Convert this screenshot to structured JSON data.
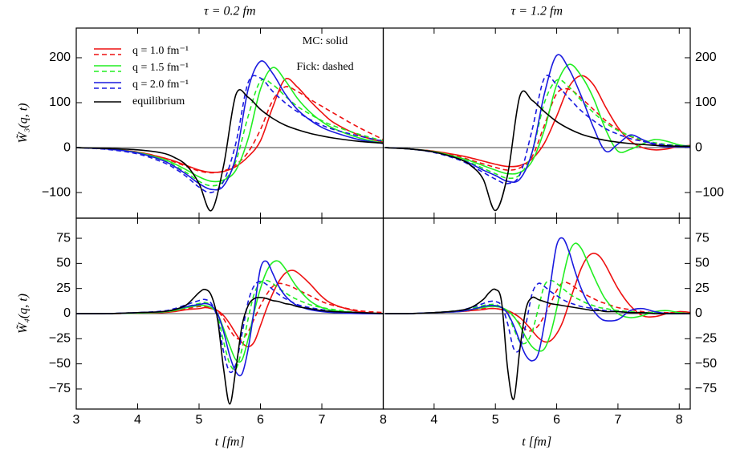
{
  "chart_data": [
    {
      "type": "line",
      "title": "τ = 0.2 fm",
      "ylabel": "W̃₃(q, t)",
      "legend": "upper left",
      "annotations": [
        "MC: solid",
        "Fick: dashed"
      ],
      "x": [
        3,
        3.5,
        4,
        4.4,
        4.6,
        4.8,
        5,
        5.2,
        5.4,
        5.6,
        5.8,
        6,
        6.2,
        6.4,
        6.6,
        6.8,
        7,
        7.2,
        7.6,
        8
      ],
      "xlim": [
        3,
        8
      ],
      "ylim": [
        -157,
        266
      ],
      "yticks": [
        {
          "value": -100,
          "label": "−100"
        },
        0,
        100,
        200
      ],
      "series": [
        {
          "name": "q = 1.0 fm⁻¹",
          "color": "#ee1111",
          "values": [
            0,
            -3,
            -10,
            -22,
            -30,
            -40,
            -50,
            -55,
            -53,
            -42,
            -20,
            15,
            90,
            152,
            135,
            105,
            78,
            55,
            28,
            12
          ],
          "dashed_values": [
            0,
            -3,
            -10,
            -22,
            -32,
            -42,
            -52,
            -56,
            -52,
            -38,
            -10,
            40,
            105,
            135,
            125,
            108,
            92,
            76,
            45,
            18
          ]
        },
        {
          "name": "q = 1.5 fm⁻¹",
          "color": "#22ee22",
          "values": [
            0,
            -3,
            -11,
            -25,
            -36,
            -50,
            -65,
            -75,
            -72,
            -50,
            20,
            130,
            178,
            150,
            110,
            80,
            58,
            42,
            22,
            10
          ],
          "dashed_values": [
            0,
            -3,
            -12,
            -28,
            -40,
            -56,
            -75,
            -85,
            -75,
            -30,
            70,
            148,
            140,
            115,
            92,
            75,
            60,
            48,
            30,
            15
          ]
        },
        {
          "name": "q = 2.0 fm⁻¹",
          "color": "#1a1adf",
          "values": [
            0,
            -3,
            -12,
            -28,
            -42,
            -60,
            -80,
            -93,
            -85,
            -20,
            130,
            192,
            165,
            120,
            85,
            62,
            45,
            34,
            18,
            9
          ],
          "dashed_values": [
            0,
            -4,
            -14,
            -32,
            -46,
            -65,
            -88,
            -100,
            -75,
            10,
            145,
            155,
            125,
            100,
            80,
            63,
            50,
            40,
            26,
            14
          ]
        },
        {
          "name": "equilibrium",
          "color": "#000000",
          "values": [
            0,
            -2,
            -5,
            -12,
            -22,
            -40,
            -80,
            -140,
            -40,
            118,
            112,
            85,
            65,
            50,
            40,
            32,
            26,
            21,
            14,
            10
          ]
        }
      ]
    },
    {
      "type": "line",
      "title": "τ = 1.2 fm",
      "x": [
        3.2,
        3.6,
        4,
        4.4,
        4.6,
        4.8,
        5,
        5.2,
        5.4,
        5.6,
        5.8,
        6,
        6.2,
        6.4,
        6.6,
        6.8,
        7,
        7.2,
        7.4,
        7.6,
        7.8,
        8,
        8.2
      ],
      "xlim": [
        3.17,
        8.18
      ],
      "ylim": [
        -157,
        266
      ],
      "yticks": [
        {
          "value": -100,
          "label": "−100"
        },
        0,
        100,
        200
      ],
      "series": [
        {
          "color": "#ee1111",
          "values": [
            0,
            -3,
            -8,
            -17,
            -23,
            -30,
            -37,
            -42,
            -40,
            -25,
            10,
            70,
            135,
            160,
            140,
            90,
            45,
            15,
            0,
            -5,
            -3,
            3,
            5
          ],
          "dashed_values": [
            0,
            -3,
            -9,
            -20,
            -28,
            -36,
            -44,
            -50,
            -45,
            -20,
            50,
            120,
            130,
            110,
            85,
            60,
            40,
            25,
            15,
            8,
            5,
            3,
            2
          ]
        },
        {
          "color": "#22ee22",
          "values": [
            0,
            -3,
            -9,
            -22,
            -30,
            -40,
            -50,
            -58,
            -55,
            -30,
            40,
            140,
            185,
            160,
            110,
            40,
            -8,
            -4,
            8,
            18,
            14,
            6,
            3
          ],
          "dashed_values": [
            0,
            -3,
            -10,
            -24,
            -34,
            -46,
            -58,
            -68,
            -60,
            -10,
            100,
            150,
            135,
            105,
            78,
            55,
            38,
            26,
            17,
            11,
            7,
            5,
            3
          ]
        },
        {
          "color": "#1a1adf",
          "values": [
            0,
            -3,
            -10,
            -25,
            -36,
            -50,
            -62,
            -75,
            -70,
            -10,
            120,
            205,
            175,
            115,
            45,
            -8,
            8,
            28,
            18,
            6,
            2,
            2,
            1
          ],
          "dashed_values": [
            0,
            -3,
            -11,
            -27,
            -40,
            -55,
            -70,
            -80,
            -60,
            40,
            155,
            140,
            110,
            82,
            60,
            42,
            30,
            20,
            14,
            9,
            6,
            4,
            3
          ]
        },
        {
          "color": "#000000",
          "values": [
            0,
            -3,
            -10,
            -25,
            -40,
            -70,
            -140,
            -60,
            115,
            105,
            80,
            58,
            42,
            30,
            22,
            16,
            12,
            9,
            7,
            5,
            4,
            3,
            3
          ]
        }
      ]
    },
    {
      "type": "line",
      "ylabel": "W̃₄(q, t)",
      "xlabel": "t [fm]",
      "x": [
        3,
        3.5,
        4,
        4.4,
        4.6,
        4.8,
        5,
        5.1,
        5.2,
        5.3,
        5.4,
        5.5,
        5.6,
        5.7,
        5.8,
        5.9,
        6,
        6.1,
        6.2,
        6.3,
        6.4,
        6.5,
        6.6,
        6.8,
        7,
        7.2,
        7.6,
        8
      ],
      "xlim": [
        3,
        8
      ],
      "xticks": [
        3,
        4,
        5,
        6,
        7,
        8
      ],
      "ylim": [
        -95,
        95
      ],
      "yticks": [
        {
          "value": -75,
          "label": "−75"
        },
        {
          "value": -50,
          "label": "−50"
        },
        {
          "value": -25,
          "label": "−25"
        },
        0,
        25,
        50,
        75
      ],
      "series": [
        {
          "color": "#ee1111",
          "values": [
            0,
            0,
            0.5,
            1,
            2,
            4,
            5,
            6,
            5,
            3,
            -2,
            -10,
            -20,
            -29,
            -33,
            -28,
            -12,
            5,
            20,
            32,
            40,
            43,
            41,
            30,
            17,
            9,
            2,
            0
          ],
          "dashed_values": [
            0,
            0,
            0.5,
            1.5,
            3,
            5,
            7,
            7,
            6,
            3,
            -5,
            -16,
            -24,
            -25,
            -18,
            -5,
            8,
            19,
            27,
            30,
            29,
            27,
            24,
            18,
            12,
            8,
            3,
            1
          ]
        },
        {
          "color": "#22ee22",
          "values": [
            0,
            0,
            0.5,
            1.5,
            3,
            6,
            8,
            8,
            6,
            0,
            -15,
            -32,
            -46,
            -46,
            -25,
            2,
            25,
            42,
            51,
            52,
            45,
            35,
            26,
            13,
            6,
            3,
            1,
            0
          ],
          "dashed_values": [
            0,
            0,
            1,
            2,
            4,
            7,
            10,
            11,
            8,
            -2,
            -28,
            -50,
            -55,
            -35,
            -5,
            20,
            31,
            33,
            30,
            25,
            21,
            17,
            14,
            9,
            6,
            4,
            1,
            0
          ]
        },
        {
          "color": "#1a1adf",
          "values": [
            0,
            0,
            1,
            2,
            4,
            7,
            9,
            10,
            8,
            0,
            -18,
            -42,
            -58,
            -60,
            -35,
            5,
            45,
            52,
            40,
            27,
            18,
            12,
            8,
            4,
            2,
            1,
            0,
            0
          ],
          "dashed_values": [
            0,
            0,
            1,
            2.5,
            5,
            9,
            13,
            14,
            10,
            -5,
            -38,
            -58,
            -50,
            -20,
            12,
            28,
            32,
            29,
            24,
            19,
            15,
            12,
            9,
            6,
            4,
            2,
            1,
            0
          ]
        },
        {
          "color": "#000000",
          "values": [
            0,
            0,
            1,
            2,
            4,
            9,
            21,
            24,
            18,
            -5,
            -55,
            -90,
            -55,
            -12,
            8,
            15,
            16,
            15,
            13,
            12,
            10,
            9,
            7,
            5,
            3,
            2,
            1,
            0
          ]
        }
      ]
    },
    {
      "type": "line",
      "xlabel": "t [fm]",
      "x": [
        3.2,
        3.6,
        4,
        4.4,
        4.6,
        4.8,
        4.9,
        5,
        5.1,
        5.2,
        5.3,
        5.4,
        5.5,
        5.6,
        5.7,
        5.8,
        5.9,
        6,
        6.1,
        6.2,
        6.3,
        6.4,
        6.5,
        6.6,
        6.7,
        6.8,
        7,
        7.2,
        7.4,
        7.6,
        7.8,
        8,
        8.2
      ],
      "xlim": [
        3.17,
        8.18
      ],
      "xticks": [
        4,
        5,
        6,
        7,
        8
      ],
      "ylim": [
        -95,
        95
      ],
      "yticks": [
        {
          "value": -75,
          "label": "−75"
        },
        {
          "value": -50,
          "label": "−50"
        },
        {
          "value": -25,
          "label": "−25"
        },
        0,
        25,
        50,
        75
      ],
      "series": [
        {
          "color": "#ee1111",
          "values": [
            0,
            0,
            1,
            2,
            3,
            4,
            5,
            5,
            4,
            3,
            0,
            -4,
            -10,
            -17,
            -24,
            -28,
            -27,
            -20,
            -8,
            10,
            28,
            45,
            56,
            60,
            57,
            48,
            25,
            8,
            -2,
            -3,
            0,
            2,
            1
          ],
          "dashed_values": [
            0,
            0,
            1,
            2,
            3,
            5,
            5,
            5,
            4,
            2,
            -3,
            -10,
            -16,
            -17,
            -12,
            -2,
            10,
            23,
            31,
            30,
            26,
            22,
            18,
            15,
            12,
            10,
            6,
            4,
            2,
            1,
            1,
            0,
            0
          ]
        },
        {
          "color": "#22ee22",
          "values": [
            0,
            0,
            1,
            2,
            4,
            6,
            7,
            7,
            6,
            3,
            -3,
            -12,
            -24,
            -33,
            -37,
            -35,
            -20,
            5,
            35,
            60,
            70,
            65,
            52,
            38,
            25,
            14,
            0,
            -4,
            -2,
            2,
            3,
            1,
            0
          ],
          "dashed_values": [
            0,
            0,
            1,
            3,
            5,
            8,
            9,
            9,
            6,
            0,
            -15,
            -28,
            -29,
            -18,
            5,
            28,
            33,
            30,
            25,
            20,
            16,
            13,
            10,
            8,
            6,
            5,
            3,
            2,
            1,
            1,
            0,
            0,
            0
          ]
        },
        {
          "color": "#1a1adf",
          "values": [
            0,
            0,
            1,
            2,
            4,
            7,
            8,
            8,
            6,
            0,
            -12,
            -28,
            -42,
            -47,
            -40,
            -10,
            30,
            68,
            75,
            62,
            42,
            25,
            12,
            3,
            -4,
            -7,
            -6,
            3,
            5,
            2,
            0,
            0,
            0
          ],
          "dashed_values": [
            0,
            0,
            1,
            3,
            6,
            10,
            12,
            12,
            8,
            -10,
            -35,
            -35,
            -10,
            20,
            30,
            27,
            22,
            18,
            14,
            11,
            9,
            7,
            6,
            5,
            4,
            3,
            2,
            1,
            1,
            0,
            0,
            0,
            0
          ]
        },
        {
          "color": "#000000",
          "values": [
            0,
            0,
            1,
            3,
            6,
            14,
            21,
            24,
            12,
            -55,
            -85,
            -35,
            5,
            16,
            14,
            12,
            10,
            9,
            8,
            7,
            6,
            5,
            4,
            3,
            3,
            2,
            2,
            1,
            1,
            0,
            0,
            0,
            0
          ]
        }
      ]
    }
  ]
}
